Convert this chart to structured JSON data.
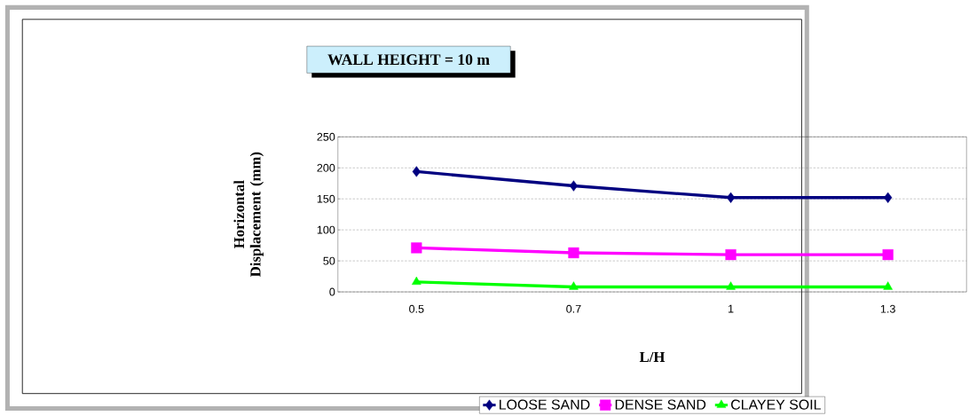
{
  "chart_data": {
    "type": "line",
    "title": "WALL HEIGHT = 10 m",
    "xlabel": "L/H",
    "ylabel": "Horizontal Displacement (mm)",
    "categories": [
      "0.5",
      "0.7",
      "1",
      "1.3"
    ],
    "series": [
      {
        "name": "LOOSE SAND",
        "color": "#000080",
        "marker": "diamond",
        "values": [
          194,
          171,
          152,
          152
        ]
      },
      {
        "name": "DENSE SAND",
        "color": "#ff00ff",
        "marker": "square",
        "values": [
          71,
          63,
          60,
          60
        ]
      },
      {
        "name": "CLAYEY SOIL",
        "color": "#00ff00",
        "marker": "triangle",
        "values": [
          16,
          8,
          8,
          8
        ]
      }
    ],
    "ylim": [
      0,
      250
    ],
    "yticks": [
      0,
      50,
      100,
      150,
      200,
      250
    ],
    "grid": "y",
    "legend": "bottom",
    "line_style": "solid"
  }
}
